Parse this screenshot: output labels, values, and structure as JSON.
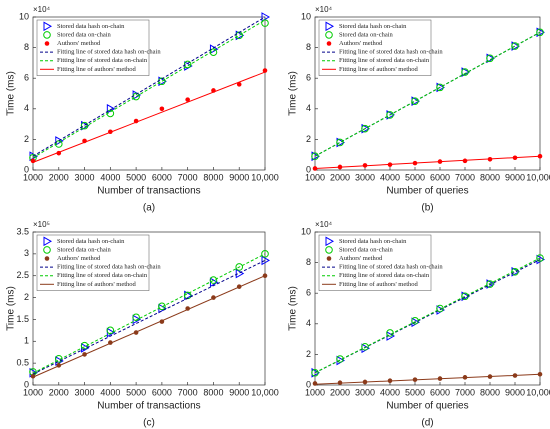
{
  "chart_data": [
    {
      "type": "line",
      "caption": "(a)",
      "xlabel": "Number of transactions",
      "ylabel": "Time (ms)",
      "exponent": "×10⁴",
      "x": [
        1000,
        2000,
        3000,
        4000,
        5000,
        6000,
        7000,
        8000,
        9000,
        10000
      ],
      "xlim": [
        1000,
        10000
      ],
      "xticks": [
        1000,
        2000,
        3000,
        4000,
        5000,
        6000,
        7000,
        8000,
        9000,
        {
          "value": 10000,
          "label": "10,000"
        }
      ],
      "ylim": [
        0,
        10
      ],
      "yticks": [
        0,
        2,
        4,
        6,
        8,
        10
      ],
      "legend": "upper left",
      "series": [
        {
          "name": "Stored data hash on-chain",
          "color": "#0000ff",
          "marker": "triangle",
          "values": [
            0.9,
            1.9,
            2.9,
            4.0,
            4.9,
            5.8,
            6.8,
            7.9,
            8.8,
            10.0
          ]
        },
        {
          "name": "Stored data on-chain",
          "color": "#00cc00",
          "marker": "circle",
          "values": [
            0.8,
            1.7,
            2.9,
            3.7,
            4.8,
            5.8,
            6.9,
            7.7,
            8.8,
            9.6
          ]
        },
        {
          "name": "Authors' method",
          "color": "#ff0000",
          "marker": "dot",
          "values": [
            0.6,
            1.1,
            1.9,
            2.5,
            3.2,
            4.0,
            4.6,
            5.2,
            5.6,
            6.5
          ]
        },
        {
          "name": "Fitting line of stored data hash on-chain",
          "color": "#00008b",
          "line": "dashed",
          "x": [
            1000,
            10000
          ],
          "values": [
            0.9,
            10.0
          ]
        },
        {
          "name": "Fitting line of stored data on-chain",
          "color": "#00cc00",
          "line": "dashed",
          "x": [
            1000,
            10000
          ],
          "values": [
            0.8,
            9.8
          ]
        },
        {
          "name": "Fitting line of authors' method",
          "color": "#ff0000",
          "line": "solid",
          "x": [
            1000,
            10000
          ],
          "values": [
            0.5,
            6.4
          ]
        }
      ]
    },
    {
      "type": "line",
      "caption": "(b)",
      "xlabel": "Number of queries",
      "ylabel": "Time (ms)",
      "exponent": "×10⁴",
      "x": [
        1000,
        2000,
        3000,
        4000,
        5000,
        6000,
        7000,
        8000,
        9000,
        10000
      ],
      "xlim": [
        1000,
        10000
      ],
      "xticks": [
        1000,
        2000,
        3000,
        4000,
        5000,
        6000,
        7000,
        8000,
        9000,
        {
          "value": 10000,
          "label": "10,000"
        }
      ],
      "ylim": [
        0,
        10
      ],
      "yticks": [
        0,
        2,
        4,
        6,
        8,
        10
      ],
      "legend": "upper left",
      "series": [
        {
          "name": "Stored data hash on-chain",
          "color": "#0000ff",
          "marker": "triangle",
          "values": [
            0.9,
            1.8,
            2.7,
            3.6,
            4.5,
            5.4,
            6.4,
            7.3,
            8.1,
            9.0
          ]
        },
        {
          "name": "Stored data on-chain",
          "color": "#00cc00",
          "marker": "circle",
          "values": [
            0.9,
            1.8,
            2.7,
            3.6,
            4.5,
            5.4,
            6.4,
            7.3,
            8.1,
            9.0
          ]
        },
        {
          "name": "Authors' method",
          "color": "#ff0000",
          "marker": "dot",
          "values": [
            0.1,
            0.2,
            0.3,
            0.35,
            0.45,
            0.55,
            0.6,
            0.7,
            0.8,
            0.9
          ]
        },
        {
          "name": "Fitting line of stored data hash on-chain",
          "color": "#00008b",
          "line": "dashed",
          "x": [
            1000,
            10000
          ],
          "values": [
            0.9,
            9.0
          ]
        },
        {
          "name": "Fitting line of stored data on-chain",
          "color": "#00cc00",
          "line": "dashed",
          "x": [
            1000,
            10000
          ],
          "values": [
            0.9,
            9.0
          ]
        },
        {
          "name": "Fitting line of authors' method",
          "color": "#ff0000",
          "line": "solid",
          "x": [
            1000,
            10000
          ],
          "values": [
            0.1,
            0.9
          ]
        }
      ]
    },
    {
      "type": "line",
      "caption": "(c)",
      "xlabel": "Number of transactions",
      "ylabel": "Time (ms)",
      "exponent": "×10⁵",
      "x": [
        1000,
        2000,
        3000,
        4000,
        5000,
        6000,
        7000,
        8000,
        9000,
        10000
      ],
      "xlim": [
        1000,
        10000
      ],
      "xticks": [
        1000,
        2000,
        3000,
        4000,
        5000,
        6000,
        7000,
        8000,
        9000,
        {
          "value": 10000,
          "label": "10,000"
        }
      ],
      "ylim": [
        0,
        3.5
      ],
      "yticks": [
        0,
        0.5,
        1,
        1.5,
        2,
        2.5,
        3,
        3.5
      ],
      "legend": "upper left",
      "series": [
        {
          "name": "Stored data hash on-chain",
          "color": "#0000ff",
          "marker": "triangle",
          "values": [
            0.28,
            0.55,
            0.85,
            1.2,
            1.5,
            1.75,
            2.05,
            2.35,
            2.55,
            2.85
          ]
        },
        {
          "name": "Stored data on-chain",
          "color": "#00cc00",
          "marker": "circle",
          "values": [
            0.3,
            0.6,
            0.9,
            1.25,
            1.55,
            1.8,
            2.05,
            2.4,
            2.7,
            3.0
          ]
        },
        {
          "name": "Authors' method",
          "color": "#8b3a1a",
          "marker": "dot",
          "values": [
            0.2,
            0.45,
            0.7,
            0.97,
            1.2,
            1.45,
            1.75,
            2.0,
            2.25,
            2.5
          ]
        },
        {
          "name": "Fitting line of stored data hash on-chain",
          "color": "#00008b",
          "line": "dashed",
          "x": [
            1000,
            10000
          ],
          "values": [
            0.25,
            2.85
          ]
        },
        {
          "name": "Fitting line of stored data on-chain",
          "color": "#00cc00",
          "line": "dashed",
          "x": [
            1000,
            10000
          ],
          "values": [
            0.27,
            3.0
          ]
        },
        {
          "name": "Fitting line of authors' method",
          "color": "#8b3a1a",
          "line": "solid",
          "x": [
            1000,
            10000
          ],
          "values": [
            0.18,
            2.5
          ]
        }
      ]
    },
    {
      "type": "line",
      "caption": "(d)",
      "xlabel": "Number of queries",
      "ylabel": "Time (ms)",
      "exponent": "×10⁴",
      "x": [
        1000,
        2000,
        3000,
        4000,
        5000,
        6000,
        7000,
        8000,
        9000,
        10000
      ],
      "xlim": [
        1000,
        10000
      ],
      "xticks": [
        1000,
        2000,
        3000,
        4000,
        5000,
        6000,
        7000,
        8000,
        9000,
        {
          "value": 10000,
          "label": "10,000"
        }
      ],
      "ylim": [
        0,
        10
      ],
      "yticks": [
        0,
        2,
        4,
        6,
        8,
        10
      ],
      "legend": "upper left",
      "series": [
        {
          "name": "Stored data hash on-chain",
          "color": "#0000ff",
          "marker": "triangle",
          "values": [
            0.8,
            1.6,
            2.4,
            3.2,
            4.1,
            4.9,
            5.8,
            6.6,
            7.4,
            8.2
          ]
        },
        {
          "name": "Stored data on-chain",
          "color": "#00cc00",
          "marker": "circle",
          "values": [
            0.8,
            1.7,
            2.5,
            3.4,
            4.2,
            5.0,
            5.8,
            6.6,
            7.4,
            8.3
          ]
        },
        {
          "name": "Authors' method",
          "color": "#8b3a1a",
          "marker": "dot",
          "values": [
            0.1,
            0.15,
            0.2,
            0.28,
            0.35,
            0.42,
            0.5,
            0.55,
            0.62,
            0.7
          ]
        },
        {
          "name": "Fitting line of stored data hash on-chain",
          "color": "#00008b",
          "line": "dashed",
          "x": [
            1000,
            10000
          ],
          "values": [
            0.8,
            8.2
          ]
        },
        {
          "name": "Fitting line of stored data on-chain",
          "color": "#00cc00",
          "line": "dashed",
          "x": [
            1000,
            10000
          ],
          "values": [
            0.8,
            8.3
          ]
        },
        {
          "name": "Fitting line of authors' method",
          "color": "#8b3a1a",
          "line": "solid",
          "x": [
            1000,
            10000
          ],
          "values": [
            0.05,
            0.7
          ]
        }
      ]
    }
  ]
}
